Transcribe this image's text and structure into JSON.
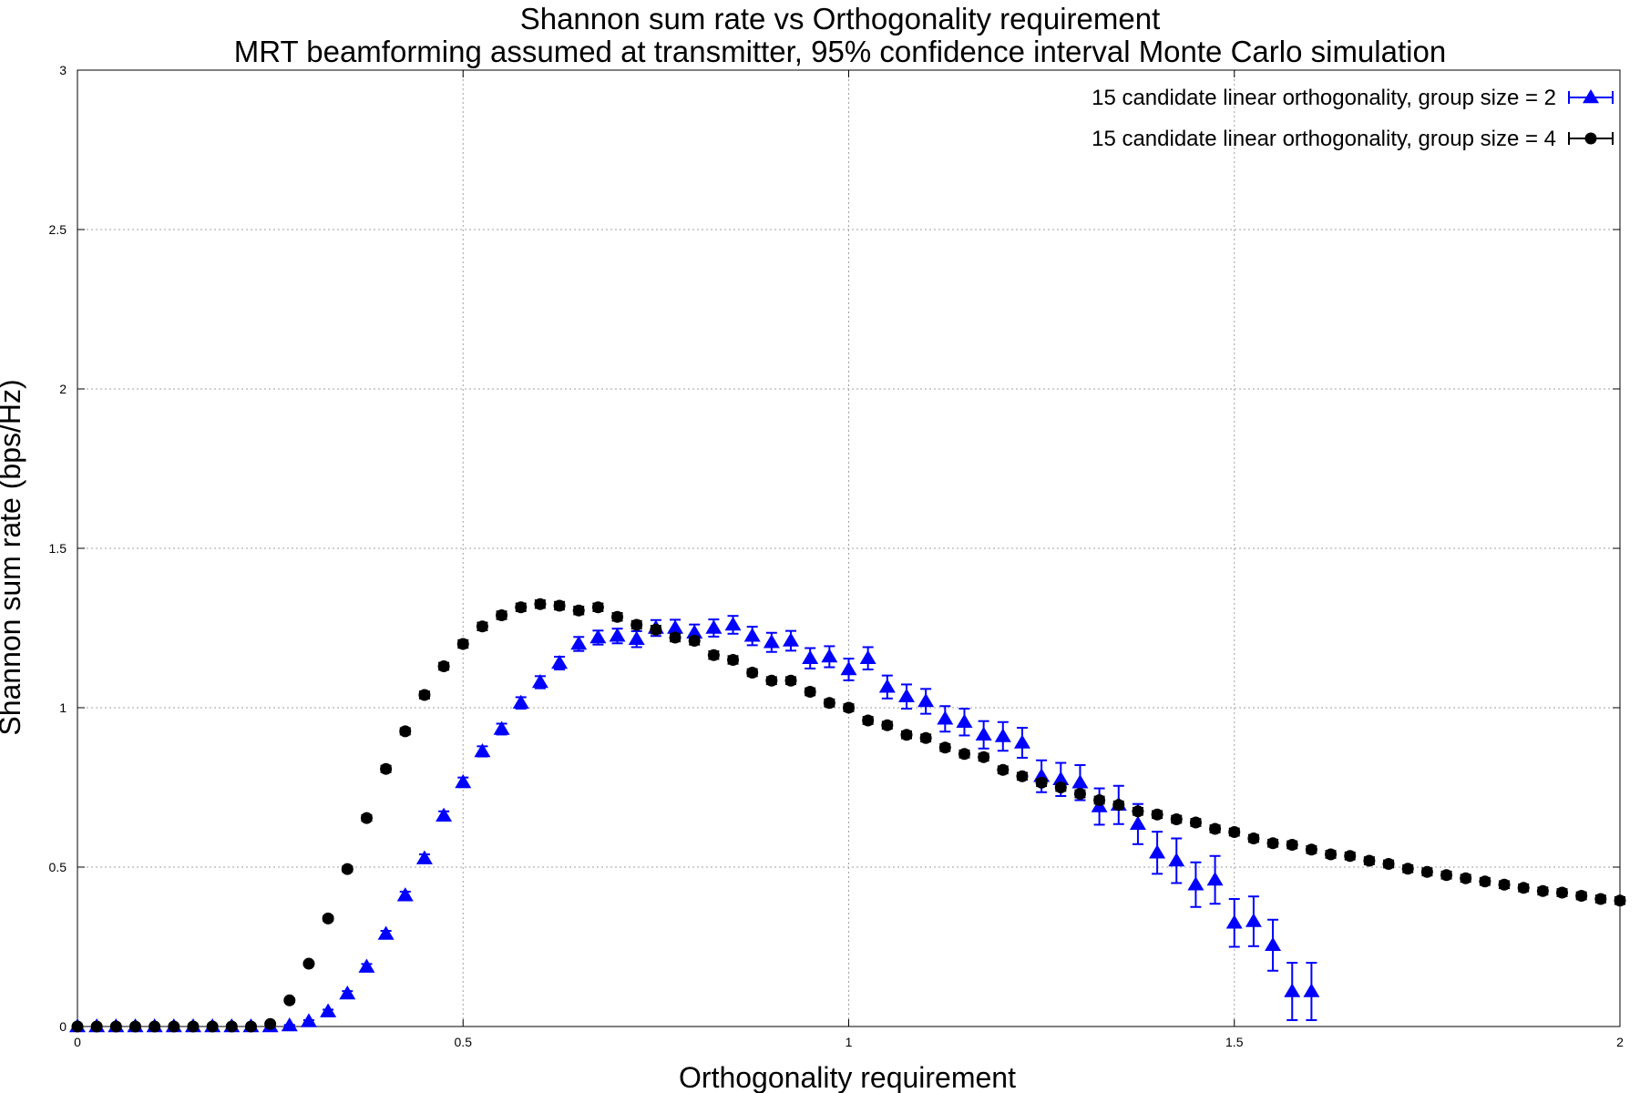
{
  "chart_data": {
    "type": "scatter",
    "title": "Shannon sum rate vs Orthogonality requirement",
    "subtitle": "MRT beamforming assumed at transmitter, 95% confidence interval Monte Carlo simulation",
    "xlabel": "Orthogonality requirement",
    "ylabel": "Shannon sum rate (bps/Hz)",
    "xlim": [
      0,
      2
    ],
    "ylim": [
      0,
      3
    ],
    "xticks": [
      0,
      0.5,
      1,
      1.5,
      2
    ],
    "xtick_labels": [
      "0",
      "0.5",
      "1",
      "1.5",
      "2"
    ],
    "yticks": [
      0,
      0.5,
      1,
      1.5,
      2,
      2.5,
      3
    ],
    "ytick_labels": [
      "0",
      "0.5",
      "1",
      "1.5",
      "2",
      "2.5",
      "3"
    ],
    "grid": true,
    "legend_position": "top-right",
    "series": [
      {
        "name": "15 candidate linear orthogonality, group size = 2",
        "color": "#0000ff",
        "marker": "triangle",
        "x": [
          0,
          0.025,
          0.05,
          0.075,
          0.1,
          0.125,
          0.15,
          0.175,
          0.2,
          0.225,
          0.25,
          0.275,
          0.3,
          0.325,
          0.35,
          0.375,
          0.4,
          0.425,
          0.45,
          0.475,
          0.5,
          0.525,
          0.55,
          0.575,
          0.6,
          0.625,
          0.65,
          0.675,
          0.7,
          0.725,
          0.75,
          0.775,
          0.8,
          0.825,
          0.85,
          0.875,
          0.9,
          0.925,
          0.95,
          0.975,
          1.0,
          1.025,
          1.05,
          1.075,
          1.1,
          1.125,
          1.15,
          1.175,
          1.2,
          1.225,
          1.25,
          1.275,
          1.3,
          1.325,
          1.35,
          1.375,
          1.4,
          1.425,
          1.45,
          1.475,
          1.5,
          1.525,
          1.55,
          1.575,
          1.6
        ],
        "y": [
          0,
          0,
          0,
          0,
          0,
          0,
          0,
          0,
          0,
          0,
          0,
          0.003,
          0.016,
          0.047,
          0.103,
          0.187,
          0.29,
          0.411,
          0.527,
          0.661,
          0.766,
          0.863,
          0.933,
          1.015,
          1.08,
          1.14,
          1.2,
          1.22,
          1.225,
          1.215,
          1.25,
          1.25,
          1.235,
          1.25,
          1.26,
          1.225,
          1.205,
          1.21,
          1.155,
          1.16,
          1.12,
          1.155,
          1.065,
          1.035,
          1.02,
          0.965,
          0.955,
          0.915,
          0.91,
          0.89,
          0.785,
          0.775,
          0.765,
          0.69,
          0.695,
          0.635,
          0.545,
          0.52,
          0.445,
          0.46,
          0.325,
          0.33,
          0.255,
          0.11,
          0.11
        ],
        "err": [
          0,
          0,
          0,
          0,
          0,
          0,
          0,
          0,
          0,
          0,
          0,
          0.002,
          0.004,
          0.006,
          0.008,
          0.009,
          0.01,
          0.012,
          0.013,
          0.014,
          0.015,
          0.016,
          0.017,
          0.018,
          0.019,
          0.02,
          0.022,
          0.022,
          0.023,
          0.025,
          0.025,
          0.026,
          0.026,
          0.027,
          0.028,
          0.029,
          0.03,
          0.031,
          0.032,
          0.033,
          0.034,
          0.035,
          0.036,
          0.038,
          0.039,
          0.04,
          0.042,
          0.043,
          0.045,
          0.047,
          0.05,
          0.052,
          0.055,
          0.057,
          0.06,
          0.063,
          0.066,
          0.07,
          0.07,
          0.075,
          0.075,
          0.078,
          0.08,
          0.09,
          0.09
        ]
      },
      {
        "name": "15 candidate linear orthogonality, group size = 4",
        "color": "#000000",
        "marker": "circle",
        "x": [
          0,
          0.025,
          0.05,
          0.075,
          0.1,
          0.125,
          0.15,
          0.175,
          0.2,
          0.225,
          0.25,
          0.275,
          0.3,
          0.325,
          0.35,
          0.375,
          0.4,
          0.425,
          0.45,
          0.475,
          0.5,
          0.525,
          0.55,
          0.575,
          0.6,
          0.625,
          0.65,
          0.675,
          0.7,
          0.725,
          0.75,
          0.775,
          0.8,
          0.825,
          0.85,
          0.875,
          0.9,
          0.925,
          0.95,
          0.975,
          1.0,
          1.025,
          1.05,
          1.075,
          1.1,
          1.125,
          1.15,
          1.175,
          1.2,
          1.225,
          1.25,
          1.275,
          1.3,
          1.325,
          1.35,
          1.375,
          1.4,
          1.425,
          1.45,
          1.475,
          1.5,
          1.525,
          1.55,
          1.575,
          1.6,
          1.625,
          1.65,
          1.675,
          1.7,
          1.725,
          1.75,
          1.775,
          1.8,
          1.825,
          1.85,
          1.875,
          1.9,
          1.925,
          1.95,
          1.975,
          2.0
        ],
        "y": [
          0,
          0,
          0,
          0,
          0,
          0,
          0,
          0,
          0,
          0,
          0.008,
          0.082,
          0.197,
          0.339,
          0.494,
          0.654,
          0.808,
          0.926,
          1.04,
          1.13,
          1.2,
          1.255,
          1.29,
          1.315,
          1.325,
          1.32,
          1.305,
          1.315,
          1.285,
          1.26,
          1.245,
          1.22,
          1.21,
          1.165,
          1.15,
          1.11,
          1.085,
          1.085,
          1.05,
          1.015,
          1.0,
          0.96,
          0.945,
          0.915,
          0.905,
          0.875,
          0.855,
          0.845,
          0.805,
          0.785,
          0.765,
          0.75,
          0.73,
          0.71,
          0.695,
          0.675,
          0.665,
          0.65,
          0.64,
          0.62,
          0.61,
          0.59,
          0.575,
          0.57,
          0.555,
          0.54,
          0.535,
          0.52,
          0.51,
          0.495,
          0.485,
          0.475,
          0.465,
          0.455,
          0.445,
          0.435,
          0.425,
          0.42,
          0.41,
          0.4,
          0.395
        ],
        "err": [
          0,
          0,
          0,
          0,
          0,
          0,
          0,
          0,
          0,
          0,
          0.003,
          0.005,
          0.006,
          0.007,
          0.008,
          0.009,
          0.01,
          0.01,
          0.011,
          0.011,
          0.012,
          0.012,
          0.012,
          0.012,
          0.012,
          0.012,
          0.012,
          0.012,
          0.012,
          0.012,
          0.012,
          0.012,
          0.012,
          0.012,
          0.012,
          0.011,
          0.011,
          0.011,
          0.011,
          0.011,
          0.011,
          0.011,
          0.011,
          0.011,
          0.011,
          0.011,
          0.011,
          0.011,
          0.011,
          0.011,
          0.011,
          0.011,
          0.011,
          0.011,
          0.011,
          0.011,
          0.011,
          0.011,
          0.011,
          0.011,
          0.011,
          0.011,
          0.011,
          0.011,
          0.011,
          0.011,
          0.011,
          0.011,
          0.011,
          0.011,
          0.011,
          0.011,
          0.011,
          0.011,
          0.011,
          0.011,
          0.011,
          0.011,
          0.011,
          0.011,
          0.011
        ]
      }
    ]
  }
}
